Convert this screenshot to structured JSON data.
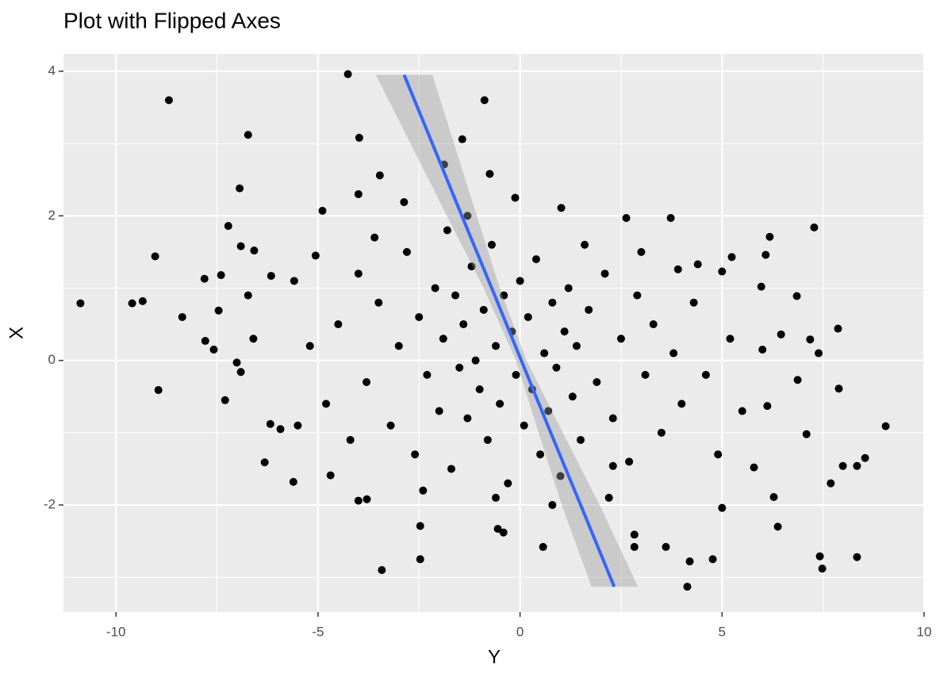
{
  "chart_data": {
    "type": "scatter",
    "title": "Plot with Flipped Axes",
    "x_label": "Y",
    "y_label": "X",
    "color": "#000000",
    "panel_color": "#ebebeb",
    "grid": true,
    "xlim": [
      -11.3,
      10.02
    ],
    "ylim": [
      -3.48,
      4.24
    ],
    "xticks": [
      -10,
      -5,
      0,
      5,
      10
    ],
    "yticks": [
      -2,
      0,
      2,
      4
    ],
    "minor_xticks": [
      -7.5,
      -2.5,
      2.5,
      7.5
    ],
    "minor_yticks": [
      -3,
      -1,
      1,
      3
    ],
    "x": [
      -4.26,
      -8.69,
      -0.88,
      -6.73,
      -3.98,
      -1.43,
      -6.94,
      -1.88,
      -0.75,
      -3.47,
      -4.0,
      -2.87,
      -4.89,
      -0.12,
      2.63,
      3.73,
      1.02,
      -7.22,
      7.28,
      6.18,
      -6.91,
      -6.58,
      -9.03,
      -5.06,
      5.24,
      6.08,
      -7.81,
      -7.4,
      -6.16,
      -5.59,
      -9.6,
      -9.34,
      -8.36,
      -7.46,
      -7.79,
      -7.58,
      -8.95,
      -7.01,
      -6.91,
      -7.3,
      -6.73,
      -6.6,
      -5.93,
      -6.18,
      -6.32,
      -5.61,
      -4.69,
      -4.0,
      -3.79,
      -3.42,
      -2.47,
      -2.47,
      7.89,
      9.05,
      8.54,
      8.34,
      7.99,
      7.69,
      7.42,
      7.48,
      8.34,
      4.14,
      4.77,
      4.2,
      6.38,
      6.28,
      5.0,
      3.61,
      2.83,
      2.83,
      2.3,
      0.57,
      -0.55,
      -0.41,
      7.39,
      7.87,
      6.85,
      7.18,
      6.0,
      6.46,
      5.97,
      5.0,
      3.91,
      4.4,
      6.87,
      7.09,
      6.12,
      5.79,
      -10.88,
      -4.5,
      -4,
      -3.8,
      -3.5,
      -3.2,
      -3,
      -2.8,
      -2.6,
      -2.5,
      -2.3,
      -2.1,
      -2,
      -1.9,
      -1.8,
      -1.7,
      -1.6,
      -1.5,
      -1.4,
      -1.3,
      -1.2,
      -1.1,
      -1,
      -0.9,
      -0.8,
      -0.7,
      -0.6,
      -0.5,
      -0.4,
      -0.3,
      -0.2,
      -0.1,
      0,
      0.1,
      0.2,
      0.3,
      0.4,
      0.5,
      0.6,
      0.7,
      0.8,
      0.9,
      1,
      1.1,
      1.2,
      1.3,
      1.4,
      1.5,
      1.7,
      1.9,
      2.1,
      2.3,
      2.5,
      2.7,
      2.9,
      3.1,
      3.3,
      3.5,
      3.8,
      4,
      4.3,
      4.6,
      4.9,
      5.2,
      5.5,
      -5.2,
      -4.8,
      -4.2,
      -5.5,
      -3.6,
      -2.4,
      1.6,
      0.8,
      -0.6,
      2.2,
      3.0,
      -1.3
    ],
    "y": [
      3.96,
      3.6,
      3.6,
      3.12,
      3.08,
      3.06,
      2.38,
      2.71,
      2.58,
      2.56,
      2.3,
      2.19,
      2.07,
      2.25,
      1.97,
      1.97,
      2.11,
      1.86,
      1.84,
      1.71,
      1.58,
      1.52,
      1.44,
      1.45,
      1.43,
      1.46,
      1.13,
      1.18,
      1.17,
      1.1,
      0.79,
      0.82,
      0.6,
      0.69,
      0.27,
      0.15,
      -0.41,
      -0.03,
      -0.16,
      -0.55,
      0.9,
      0.3,
      -0.95,
      -0.88,
      -1.41,
      -1.68,
      -1.59,
      -1.94,
      -1.92,
      -2.9,
      -2.29,
      -2.75,
      -0.39,
      -0.91,
      -1.35,
      -1.46,
      -1.46,
      -1.7,
      -2.71,
      -2.88,
      -2.72,
      -3.13,
      -2.75,
      -2.78,
      -2.3,
      -1.89,
      -2.04,
      -2.58,
      -2.58,
      -2.41,
      -1.46,
      -2.58,
      -2.33,
      -2.38,
      0.1,
      0.44,
      0.89,
      0.29,
      0.15,
      0.36,
      1.02,
      1.23,
      1.26,
      1.33,
      -0.27,
      -1.02,
      -0.63,
      -1.48,
      0.79,
      0.5,
      1.2,
      -0.3,
      0.8,
      -0.9,
      0.2,
      1.5,
      -1.3,
      0.6,
      -0.2,
      1.0,
      -0.7,
      0.3,
      1.8,
      -1.5,
      0.9,
      -0.1,
      0.5,
      -0.8,
      1.3,
      0.0,
      -0.4,
      0.7,
      -1.1,
      1.6,
      0.2,
      -0.6,
      0.9,
      -1.7,
      0.4,
      -0.2,
      1.1,
      -0.9,
      0.6,
      -0.4,
      1.4,
      -1.3,
      0.1,
      -0.7,
      0.8,
      -0.1,
      -1.6,
      0.4,
      1.0,
      -0.5,
      0.2,
      -1.1,
      0.7,
      -0.3,
      1.2,
      -0.8,
      0.3,
      -1.4,
      0.9,
      -0.2,
      0.5,
      -1.0,
      0.1,
      -0.6,
      0.8,
      -0.2,
      -1.3,
      0.3,
      -0.7,
      0.2,
      -0.6,
      -1.1,
      -0.9,
      1.7,
      -1.8,
      1.6,
      -2.0,
      -1.9,
      -1.9,
      1.5,
      2.0
    ],
    "fit": {
      "color": "#3366ff",
      "fill": "#999999",
      "y": [
        -3.13,
        -2,
        -1,
        0,
        1,
        2,
        3,
        3.95
      ],
      "x": [
        2.33,
        1.5,
        0.76,
        0.03,
        -0.7,
        -1.44,
        -2.17,
        -2.87
      ],
      "lower": [
        1.77,
        1.03,
        0.46,
        -0.1,
        -0.9,
        -1.81,
        -2.71,
        -3.57
      ],
      "upper": [
        2.92,
        1.97,
        1.06,
        0.16,
        -0.5,
        -1.07,
        -1.63,
        -2.17
      ]
    }
  }
}
